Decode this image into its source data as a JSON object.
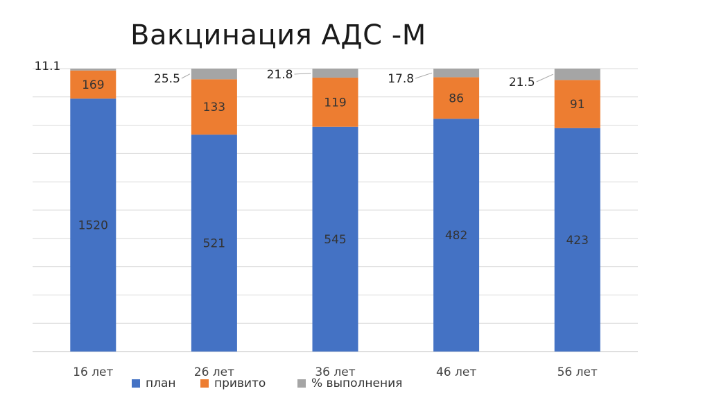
{
  "chart_data": {
    "type": "bar",
    "stacked": true,
    "title": "Вакцинация АДС -М",
    "categories": [
      "16 лет",
      "26 лет",
      "36 лет",
      "46 лет",
      "56 лет"
    ],
    "series": [
      {
        "name": "план",
        "color": "#4472C4",
        "values": [
          1520,
          521,
          545,
          482,
          423
        ]
      },
      {
        "name": "привито",
        "color": "#ED7D31",
        "values": [
          169,
          133,
          119,
          86,
          91
        ]
      },
      {
        "name": "% выполнения",
        "color": "#A5A5A5",
        "values": [
          11.1,
          25.5,
          21.8,
          17.8,
          21.5
        ]
      }
    ],
    "normalized_percent": true,
    "legend_position": "bottom",
    "gridlines": true,
    "xlabel": "",
    "ylabel": ""
  }
}
